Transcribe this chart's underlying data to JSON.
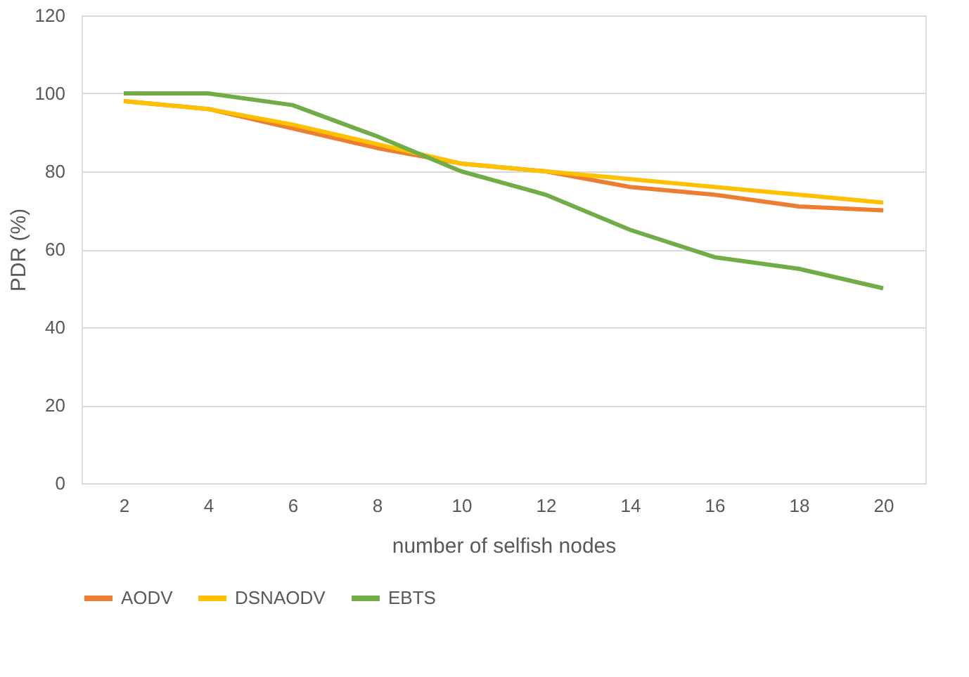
{
  "chart_data": {
    "type": "line",
    "xlabel": "number of selfish nodes",
    "ylabel": "PDR (%)",
    "categories": [
      "2",
      "4",
      "6",
      "8",
      "10",
      "12",
      "14",
      "16",
      "18",
      "20"
    ],
    "series": [
      {
        "name": "AODV",
        "color": "#ed7d31",
        "values": [
          98,
          96,
          91,
          86,
          82,
          80,
          76,
          74,
          71,
          70
        ]
      },
      {
        "name": "DSNAODV",
        "color": "#ffc000",
        "values": [
          98,
          96,
          92,
          87,
          82,
          80,
          78,
          76,
          74,
          72
        ]
      },
      {
        "name": "EBTS",
        "color": "#70ad47",
        "values": [
          100,
          100,
          97,
          89,
          80,
          74,
          65,
          58,
          55,
          50
        ]
      }
    ],
    "ylim": [
      0,
      120
    ],
    "yticks": [
      0,
      20,
      40,
      60,
      80,
      100,
      120
    ],
    "grid": "y",
    "legend": "bottom",
    "marker": "none",
    "line_style": "solid"
  }
}
